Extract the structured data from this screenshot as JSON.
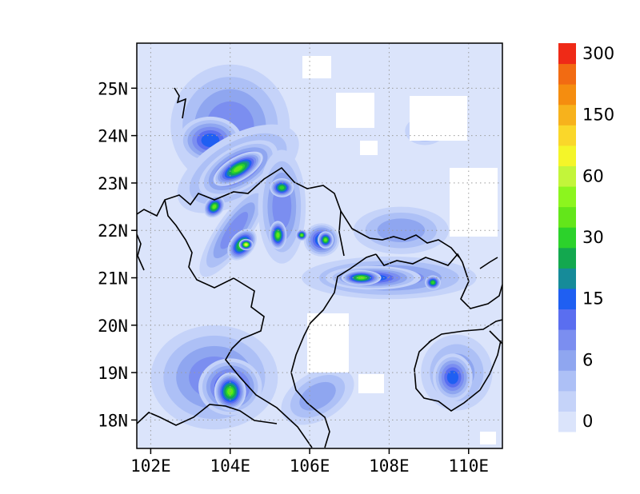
{
  "chart_data": {
    "type": "heatmap",
    "title": "",
    "xlabel": "",
    "ylabel": "",
    "xlim": [
      101.65,
      110.85
    ],
    "ylim": [
      17.4,
      25.95
    ],
    "grid": true,
    "legend": "colorbar-right",
    "x_ticks": [
      {
        "value": 102,
        "label": "102E"
      },
      {
        "value": 104,
        "label": "104E"
      },
      {
        "value": 106,
        "label": "106E"
      },
      {
        "value": 108,
        "label": "108E"
      },
      {
        "value": 110,
        "label": "110E"
      }
    ],
    "y_ticks": [
      {
        "value": 18,
        "label": "18N"
      },
      {
        "value": 19,
        "label": "19N"
      },
      {
        "value": 20,
        "label": "20N"
      },
      {
        "value": 21,
        "label": "21N"
      },
      {
        "value": 22,
        "label": "22N"
      },
      {
        "value": 23,
        "label": "23N"
      },
      {
        "value": 24,
        "label": "24N"
      },
      {
        "value": 25,
        "label": "25N"
      }
    ],
    "colorbar": {
      "colors": [
        "#dbe4fb",
        "#c5d3f9",
        "#adc0f6",
        "#8fa6f0",
        "#7b8ef0",
        "#5a6ef0",
        "#1f5ff2",
        "#168b99",
        "#13a84f",
        "#2cd22b",
        "#63e61a",
        "#8cf51e",
        "#c3f53a",
        "#f4f529",
        "#fad72a",
        "#f7b21c",
        "#f58d0f",
        "#f26b12",
        "#ef2a17"
      ],
      "labels": [
        {
          "text": "0",
          "level": 0
        },
        {
          "text": "6",
          "level": 3
        },
        {
          "text": "15",
          "level": 6
        },
        {
          "text": "30",
          "level": 9
        },
        {
          "text": "60",
          "level": 12
        },
        {
          "text": "150",
          "level": 15
        },
        {
          "text": "300",
          "level": 18
        }
      ]
    },
    "blobs": [
      {
        "lon": 104.0,
        "lat": 24.2,
        "rx": 1.5,
        "ry": 1.3,
        "level": 4,
        "rot": 0
      },
      {
        "lon": 103.5,
        "lat": 23.9,
        "rx": 0.8,
        "ry": 0.5,
        "level": 6,
        "rot": 0
      },
      {
        "lon": 104.2,
        "lat": 23.3,
        "rx": 1.7,
        "ry": 0.7,
        "level": 4,
        "rot": 30
      },
      {
        "lon": 104.2,
        "lat": 23.3,
        "rx": 1.1,
        "ry": 0.45,
        "level": 7,
        "rot": 30
      },
      {
        "lon": 104.2,
        "lat": 23.3,
        "rx": 0.7,
        "ry": 0.25,
        "level": 10,
        "rot": 30
      },
      {
        "lon": 104.1,
        "lat": 22.0,
        "rx": 1.4,
        "ry": 0.35,
        "level": 4,
        "rot": 55
      },
      {
        "lon": 104.3,
        "lat": 21.7,
        "rx": 0.45,
        "ry": 0.25,
        "level": 10,
        "rot": 50
      },
      {
        "lon": 104.4,
        "lat": 21.7,
        "rx": 0.18,
        "ry": 0.12,
        "level": 13,
        "rot": 0
      },
      {
        "lon": 103.6,
        "lat": 22.5,
        "rx": 0.3,
        "ry": 0.2,
        "level": 10,
        "rot": 50
      },
      {
        "lon": 105.3,
        "lat": 22.5,
        "rx": 0.6,
        "ry": 1.2,
        "level": 4,
        "rot": 0
      },
      {
        "lon": 105.2,
        "lat": 21.9,
        "rx": 0.22,
        "ry": 0.3,
        "level": 10,
        "rot": 0
      },
      {
        "lon": 105.3,
        "lat": 22.9,
        "rx": 0.3,
        "ry": 0.2,
        "level": 9,
        "rot": 0
      },
      {
        "lon": 106.3,
        "lat": 21.8,
        "rx": 0.45,
        "ry": 0.35,
        "level": 7,
        "rot": 0
      },
      {
        "lon": 106.4,
        "lat": 21.8,
        "rx": 0.2,
        "ry": 0.18,
        "level": 10,
        "rot": 0
      },
      {
        "lon": 105.8,
        "lat": 21.9,
        "rx": 0.15,
        "ry": 0.12,
        "level": 10,
        "rot": 0
      },
      {
        "lon": 108.0,
        "lat": 21.0,
        "rx": 2.2,
        "ry": 0.45,
        "level": 4,
        "rot": 0
      },
      {
        "lon": 107.6,
        "lat": 21.0,
        "rx": 1.2,
        "ry": 0.25,
        "level": 6,
        "rot": 0
      },
      {
        "lon": 107.3,
        "lat": 21.0,
        "rx": 0.5,
        "ry": 0.16,
        "level": 10,
        "rot": 0
      },
      {
        "lon": 109.1,
        "lat": 20.9,
        "rx": 0.2,
        "ry": 0.15,
        "level": 9,
        "rot": 0
      },
      {
        "lon": 108.3,
        "lat": 22.0,
        "rx": 1.2,
        "ry": 0.5,
        "level": 3,
        "rot": 0
      },
      {
        "lon": 108.9,
        "lat": 24.1,
        "rx": 0.5,
        "ry": 0.3,
        "level": 3,
        "rot": 0
      },
      {
        "lon": 103.6,
        "lat": 18.9,
        "rx": 1.6,
        "ry": 1.1,
        "level": 4,
        "rot": 0
      },
      {
        "lon": 104.0,
        "lat": 18.7,
        "rx": 0.8,
        "ry": 0.6,
        "level": 7,
        "rot": 0
      },
      {
        "lon": 104.0,
        "lat": 18.6,
        "rx": 0.4,
        "ry": 0.4,
        "level": 10,
        "rot": 0
      },
      {
        "lon": 109.7,
        "lat": 19.0,
        "rx": 0.9,
        "ry": 0.8,
        "level": 3,
        "rot": 0
      },
      {
        "lon": 109.6,
        "lat": 18.9,
        "rx": 0.5,
        "ry": 0.5,
        "level": 6,
        "rot": 0
      },
      {
        "lon": 106.2,
        "lat": 18.5,
        "rx": 1.0,
        "ry": 0.5,
        "level": 3,
        "rot": 30
      }
    ]
  }
}
